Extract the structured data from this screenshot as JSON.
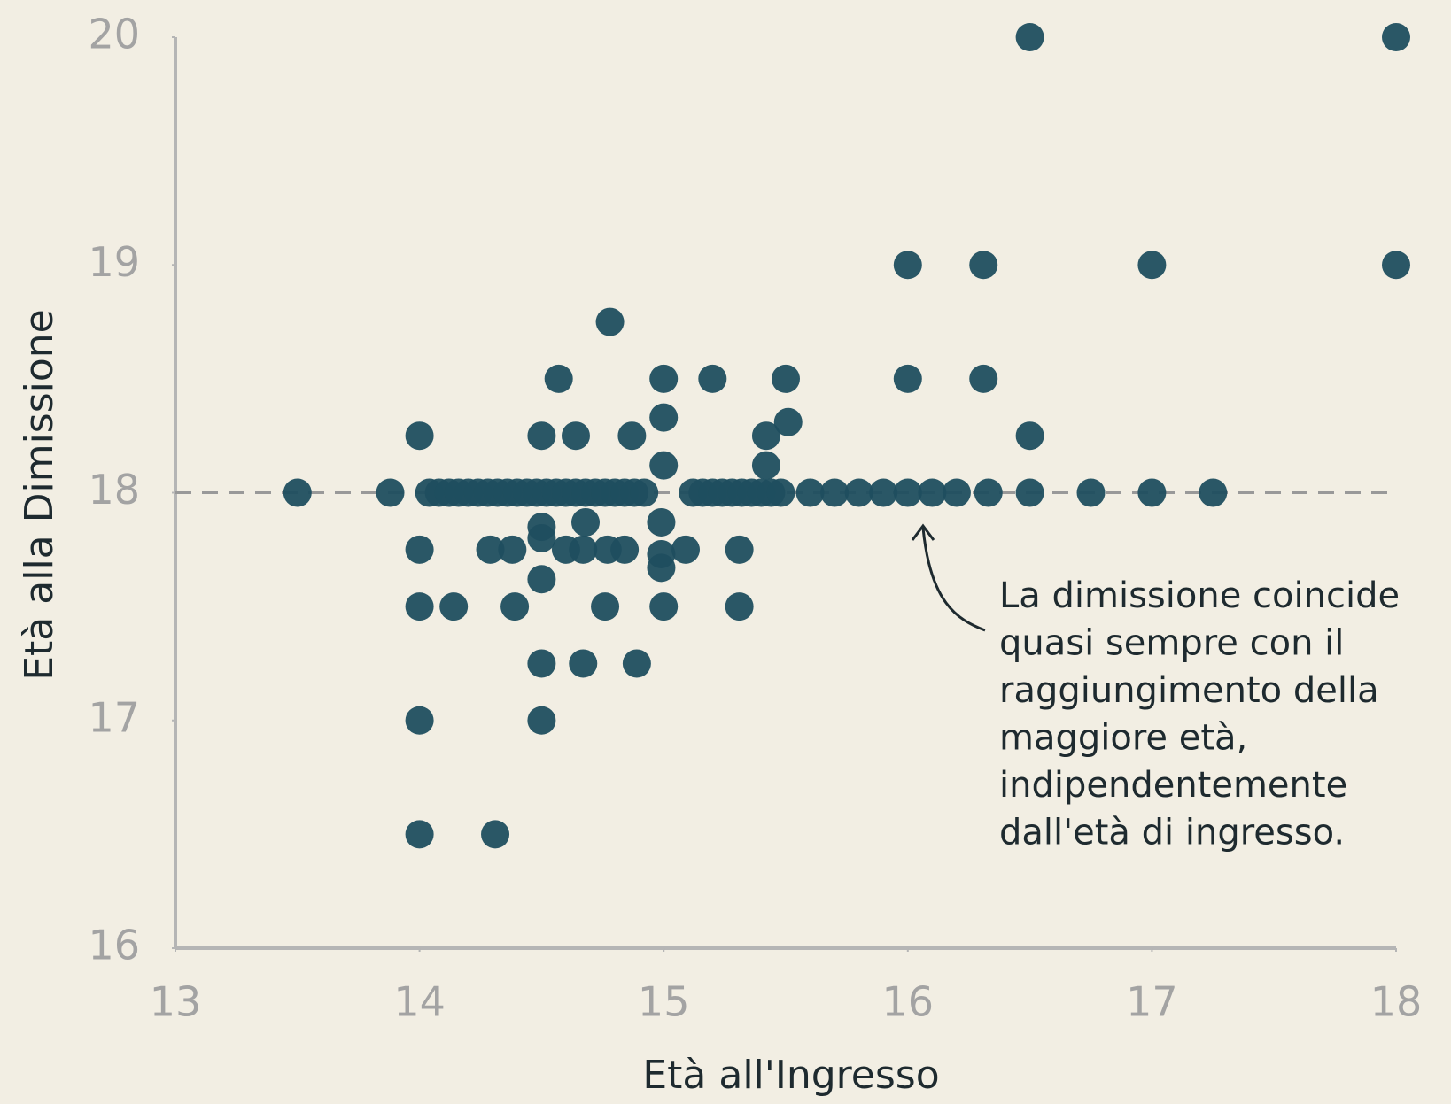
{
  "chart_data": {
    "type": "scatter",
    "x_label": "Età all'Ingresso",
    "y_label": "Età alla Dimissione",
    "x": [
      13.5,
      13.88,
      14.04,
      14.08,
      14.12,
      14.16,
      14.2,
      14.24,
      14.28,
      14.32,
      14.36,
      14.4,
      14.44,
      14.48,
      14.52,
      14.56,
      14.6,
      14.64,
      14.68,
      14.72,
      14.76,
      14.8,
      14.84,
      14.88,
      14.92,
      15.12,
      15.16,
      15.2,
      15.24,
      15.28,
      15.32,
      15.36,
      15.4,
      15.44,
      15.48,
      15.6,
      15.7,
      15.8,
      15.9,
      16.0,
      16.1,
      16.2,
      16.33,
      16.5,
      16.75,
      17,
      17.25,
      16.5,
      18,
      16,
      16.31,
      17,
      18,
      14.78,
      14.57,
      15,
      15.2,
      15.5,
      16,
      16.31,
      15,
      15.51,
      15.42,
      14,
      14.5,
      14.64,
      14.87,
      16.5,
      15,
      15.42,
      14,
      14.29,
      14.38,
      14.5,
      14.5,
      14.6,
      14.67,
      14.77,
      14.84,
      14.99,
      14.99,
      14.99,
      15.09,
      15.31,
      14.68,
      14.5,
      14,
      14.14,
      14.39,
      14.76,
      15,
      15.31,
      14.5,
      14.67,
      14.89,
      14,
      14.5,
      14,
      14.31
    ],
    "y": [
      18,
      18,
      18,
      18,
      18,
      18,
      18,
      18,
      18,
      18,
      18,
      18,
      18,
      18,
      18,
      18,
      18,
      18,
      18,
      18,
      18,
      18,
      18,
      18,
      18,
      18,
      18,
      18,
      18,
      18,
      18,
      18,
      18,
      18,
      18,
      18,
      18,
      18,
      18,
      18,
      18,
      18,
      18,
      18,
      18,
      18,
      18,
      20,
      20,
      19,
      19,
      19,
      19,
      18.75,
      18.5,
      18.5,
      18.5,
      18.5,
      18.5,
      18.5,
      18.33,
      18.31,
      18.25,
      18.25,
      18.25,
      18.25,
      18.25,
      18.25,
      18.12,
      18.12,
      17.75,
      17.75,
      17.75,
      17.85,
      17.8,
      17.75,
      17.75,
      17.75,
      17.75,
      17.87,
      17.73,
      17.67,
      17.75,
      17.75,
      17.87,
      17.62,
      17.5,
      17.5,
      17.5,
      17.5,
      17.5,
      17.5,
      17.25,
      17.25,
      17.25,
      17,
      17,
      16.5,
      16.5
    ],
    "color": "#1f4e5f",
    "reference_line": 18,
    "xlim": [
      13,
      18
    ],
    "xticks": [
      13,
      14,
      15,
      16,
      17,
      18
    ],
    "ylim": [
      16,
      20
    ],
    "yticks": [
      16,
      17,
      18,
      19,
      20
    ],
    "annotation": [
      "La dimissione coincide",
      "quasi sempre con il",
      "raggiungimento della",
      "maggiore età,",
      "indipendentemente",
      "dall'età di ingresso."
    ]
  }
}
